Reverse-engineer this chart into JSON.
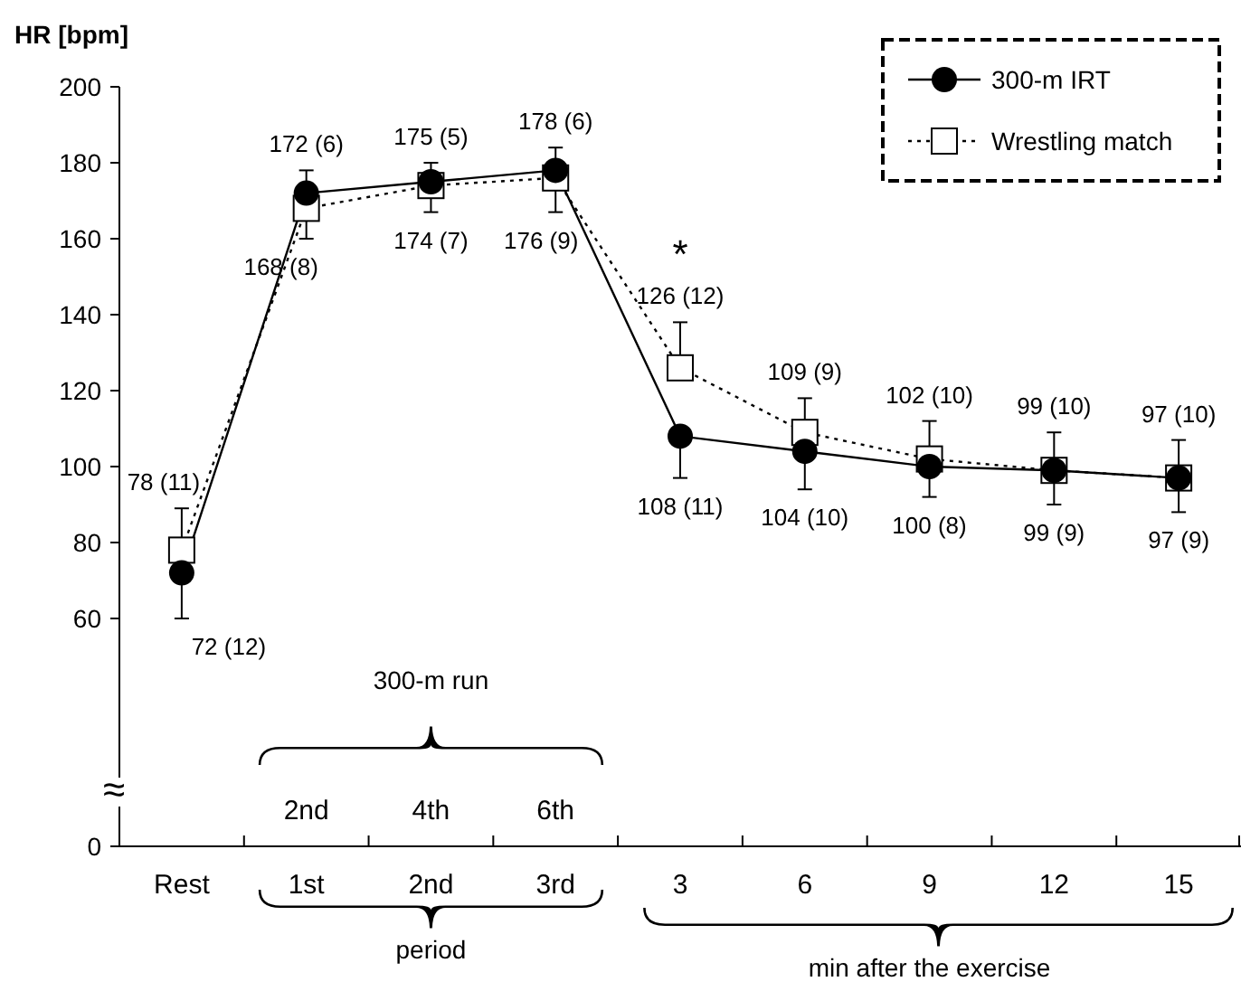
{
  "chart_data": {
    "type": "line",
    "ylabel": "HR [bpm]",
    "categories": [
      "Rest",
      "1st",
      "2nd",
      "3rd",
      "3",
      "6",
      "9",
      "12",
      "15"
    ],
    "ylim": [
      0,
      200
    ],
    "yticks": [
      0,
      60,
      80,
      100,
      120,
      140,
      160,
      180,
      200
    ],
    "series": [
      {
        "name": "300-m IRT",
        "color": "#000000",
        "marker": "circle",
        "line_style": "solid",
        "values": [
          72,
          172,
          175,
          178,
          108,
          104,
          100,
          99,
          97
        ],
        "errors": [
          [
            60,
            72
          ],
          [
            172,
            178
          ],
          [
            175,
            180
          ],
          [
            178,
            184
          ],
          [
            97,
            108
          ],
          [
            94,
            104
          ],
          [
            92,
            100
          ],
          [
            90,
            99
          ],
          [
            88,
            97
          ]
        ],
        "value_labels": [
          "72 (12)",
          "172 (6)",
          "175 (5)",
          "178 (6)",
          "108 (11)",
          "104 (10)",
          "100 (8)",
          "99 (9)",
          "97 (9)"
        ]
      },
      {
        "name": "Wrestling match",
        "color": "#000000",
        "marker": "square",
        "line_style": "dotted",
        "values": [
          78,
          168,
          174,
          176,
          126,
          109,
          102,
          99,
          97
        ],
        "errors": [
          [
            78,
            89
          ],
          [
            160,
            168
          ],
          [
            167,
            174
          ],
          [
            167,
            176
          ],
          [
            126,
            138
          ],
          [
            109,
            118
          ],
          [
            102,
            112
          ],
          [
            99,
            109
          ],
          [
            97,
            107
          ]
        ],
        "value_labels": [
          "78 (11)",
          "168 (8)",
          "174 (7)",
          "176 (9)",
          "126 (12)",
          "109 (9)",
          "102 (10)",
          "99 (10)",
          "97 (10)"
        ]
      }
    ],
    "annotations": [
      "*",
      "≈",
      "300-m run",
      "2nd",
      "4th",
      "6th",
      "period",
      "min after the exercise"
    ],
    "legend": "top right",
    "grid": false
  }
}
